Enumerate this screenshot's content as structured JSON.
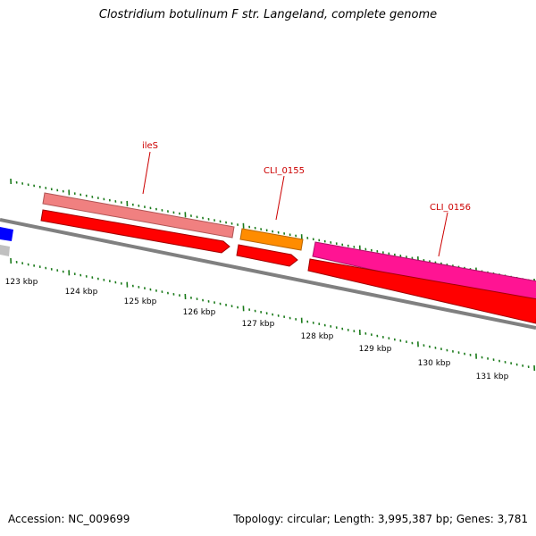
{
  "title": "Clostridium botulinum F str. Langeland, complete genome",
  "footer": {
    "accession": "Accession: NC_009699",
    "summary": "Topology: circular; Length: 3,995,387 bp; Genes: 3,781"
  },
  "scale": {
    "unit": "kbp",
    "labels": [
      "123 kbp",
      "124 kbp",
      "125 kbp",
      "126 kbp",
      "127 kbp",
      "128 kbp",
      "129 kbp",
      "130 kbp",
      "131 kbp"
    ]
  },
  "genes": [
    {
      "label": "ileS",
      "feature_color": "#f08080",
      "cds_color": "#ff0000"
    },
    {
      "label": "CLI_0155",
      "feature_color": "#ff8c00",
      "cds_color": "#ff0000"
    },
    {
      "label": "CLI_0156",
      "feature_color": "#ff1493",
      "cds_color": "#ff0000"
    }
  ],
  "colors": {
    "backbone": "#808080",
    "ticks": "#1a7a1a",
    "label_lines": "#cc0000",
    "edge_feature_left": "#0000ff"
  }
}
